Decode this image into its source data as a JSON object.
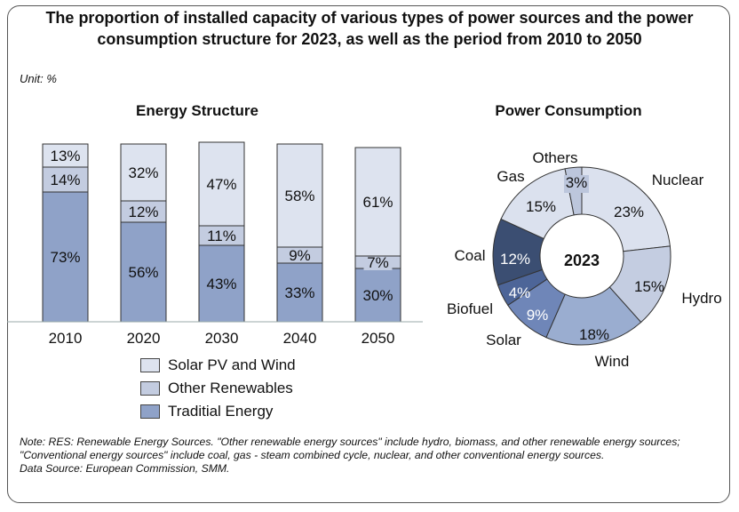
{
  "title": "The proportion of installed capacity of various types of power sources and the power consumption structure for 2023, as well as the period from 2010 to 2050",
  "unit_label": "Unit:  %",
  "note": "Note: RES: Renewable Energy Sources. \"Other renewable energy sources\" include hydro, biomass, and other renewable energy sources; \"Conventional energy sources\" include coal, gas - steam combined cycle, nuclear, and other conventional energy sources.",
  "source": "Data Source: European Commission, SMM.",
  "colors": {
    "solar_wind": "#dde3ef",
    "other_renewables": "#c3cce0",
    "traditional": "#8fa2c8",
    "coal": "#3b4e72",
    "biofuel": "#4d6598",
    "solar": "#6f86b8",
    "wind": "#9aadd0",
    "hydro": "#c4cde1",
    "nuclear": "#dbe1ee",
    "gas": "#dbe1ee",
    "others": "#bcc6dc"
  },
  "chart_data": [
    {
      "type": "bar",
      "stacked": true,
      "title": "Energy Structure",
      "categories": [
        "2010",
        "2020",
        "2030",
        "2040",
        "2050"
      ],
      "series": [
        {
          "name": "Traditial Energy",
          "values": [
            73,
            56,
            43,
            33,
            30
          ]
        },
        {
          "name": "Other Renewables",
          "values": [
            14,
            12,
            11,
            9,
            7
          ]
        },
        {
          "name": "Solar PV and Wind",
          "values": [
            13,
            32,
            47,
            58,
            61
          ]
        }
      ],
      "legend_order": [
        "Solar PV and Wind",
        "Other Renewables",
        "Traditial Energy"
      ],
      "ylim": [
        0,
        100
      ],
      "legend_position": "bottom"
    },
    {
      "type": "pie",
      "donut": true,
      "title": "Power Consumption",
      "center_label": "2023",
      "slices": [
        {
          "name": "Nuclear",
          "value": 23
        },
        {
          "name": "Hydro",
          "value": 15
        },
        {
          "name": "Wind",
          "value": 18
        },
        {
          "name": "Solar",
          "value": 9
        },
        {
          "name": "Biofuel",
          "value": 4
        },
        {
          "name": "Coal",
          "value": 12
        },
        {
          "name": "Gas",
          "value": 15
        },
        {
          "name": "Others",
          "value": 3
        }
      ]
    }
  ]
}
